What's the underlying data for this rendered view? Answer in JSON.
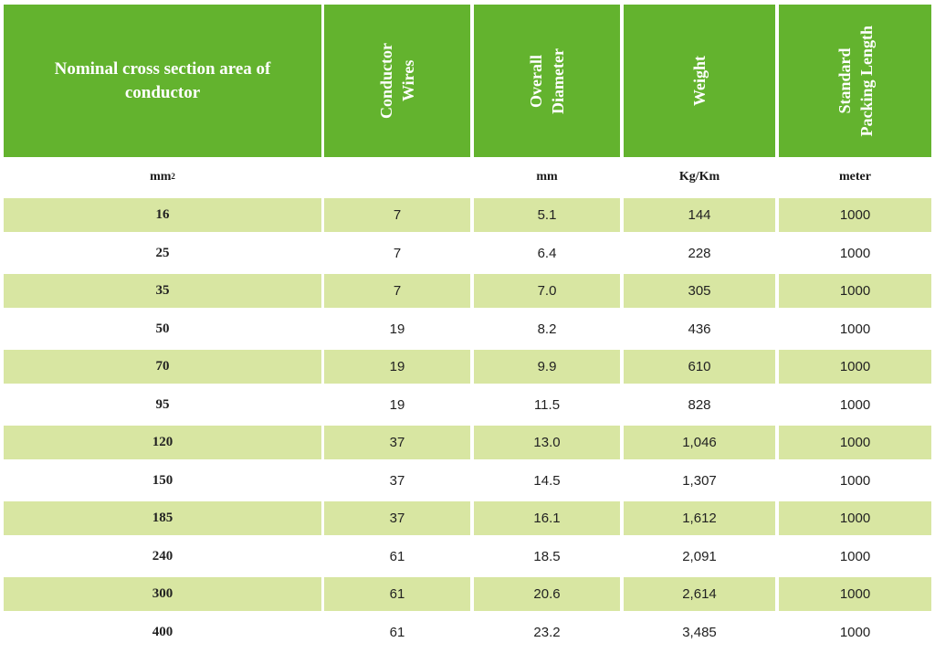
{
  "headers": {
    "nominal": "Nominal cross section area of conductor",
    "conductor_wires": [
      "Conductor",
      "Wires"
    ],
    "overall_diameter": [
      "Overall",
      "Diameter"
    ],
    "weight": [
      "Weight"
    ],
    "packing_length": [
      "Standard",
      "Packing Length"
    ]
  },
  "units": {
    "nominal_base": "mm",
    "nominal_sup": "2",
    "conductor_wires": "",
    "overall_diameter": "mm",
    "weight": "Kg/Km",
    "packing_length": "meter"
  },
  "rows": [
    {
      "area": "16",
      "wires": "7",
      "diameter": "5.1",
      "weight": "144",
      "length": "1000"
    },
    {
      "area": "25",
      "wires": "7",
      "diameter": "6.4",
      "weight": "228",
      "length": "1000"
    },
    {
      "area": "35",
      "wires": "7",
      "diameter": "7.0",
      "weight": "305",
      "length": "1000"
    },
    {
      "area": "50",
      "wires": "19",
      "diameter": "8.2",
      "weight": "436",
      "length": "1000"
    },
    {
      "area": "70",
      "wires": "19",
      "diameter": "9.9",
      "weight": "610",
      "length": "1000"
    },
    {
      "area": "95",
      "wires": "19",
      "diameter": "11.5",
      "weight": "828",
      "length": "1000"
    },
    {
      "area": "120",
      "wires": "37",
      "diameter": "13.0",
      "weight": "1,046",
      "length": "1000"
    },
    {
      "area": "150",
      "wires": "37",
      "diameter": "14.5",
      "weight": "1,307",
      "length": "1000"
    },
    {
      "area": "185",
      "wires": "37",
      "diameter": "16.1",
      "weight": "1,612",
      "length": "1000"
    },
    {
      "area": "240",
      "wires": "61",
      "diameter": "18.5",
      "weight": "2,091",
      "length": "1000"
    },
    {
      "area": "300",
      "wires": "61",
      "diameter": "20.6",
      "weight": "2,614",
      "length": "1000"
    },
    {
      "area": "400",
      "wires": "61",
      "diameter": "23.2",
      "weight": "3,485",
      "length": "1000"
    }
  ],
  "colors": {
    "header_green": "#63b32e",
    "row_shade": "#d8e6a2"
  }
}
